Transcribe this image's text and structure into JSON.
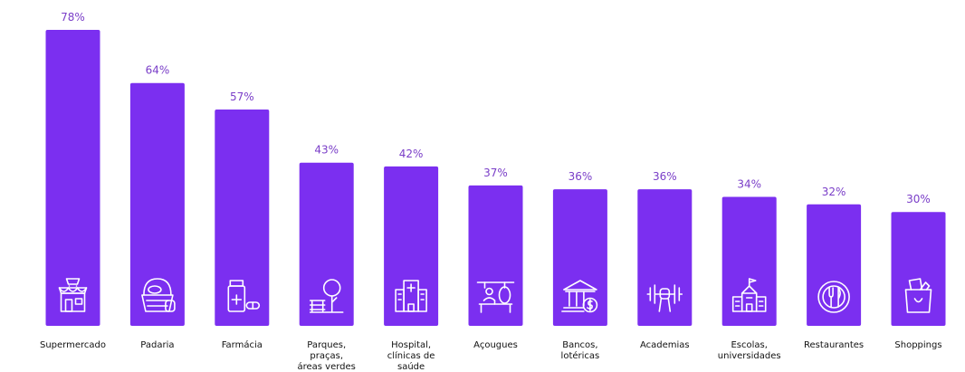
{
  "chart_data": {
    "type": "bar",
    "categories": [
      [
        "Supermercado"
      ],
      [
        "Padaria"
      ],
      [
        "Farmácia"
      ],
      [
        "Parques,",
        "praças,",
        "áreas verdes"
      ],
      [
        "Hospital,",
        "clínicas de",
        "saúde"
      ],
      [
        "Açougues"
      ],
      [
        "Bancos,",
        "lotéricas"
      ],
      [
        "Academias"
      ],
      [
        "Escolas,",
        "universidades"
      ],
      [
        "Restaurantes"
      ],
      [
        "Shoppings"
      ]
    ],
    "values": [
      78,
      64,
      57,
      43,
      42,
      37,
      36,
      36,
      34,
      32,
      30
    ],
    "value_labels": [
      "78%",
      "64%",
      "57%",
      "43%",
      "42%",
      "37%",
      "36%",
      "36%",
      "34%",
      "32%",
      "30%"
    ],
    "icons": [
      "store-icon",
      "bread-basket-icon",
      "medicine-icon",
      "park-icon",
      "hospital-icon",
      "butcher-icon",
      "bank-icon",
      "dumbbell-icon",
      "school-icon",
      "restaurant-icon",
      "shopping-bag-icon"
    ],
    "bar_color": "#7b2ff0",
    "label_color": "#7a3ec8",
    "ylim": [
      0,
      78
    ],
    "title": "",
    "xlabel": "",
    "ylabel": ""
  }
}
